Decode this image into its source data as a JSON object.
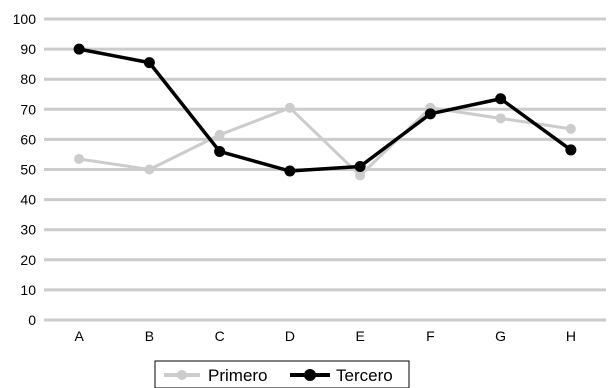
{
  "chart_data": {
    "type": "line",
    "title": "",
    "xlabel": "",
    "ylabel": "",
    "categories": [
      "A",
      "B",
      "C",
      "D",
      "E",
      "F",
      "G",
      "H"
    ],
    "y_ticks": [
      "0",
      "10",
      "20",
      "30",
      "40",
      "50",
      "60",
      "70",
      "80",
      "90",
      "100"
    ],
    "ylim": [
      0,
      100
    ],
    "grid": true,
    "legend_position": "bottom",
    "series": [
      {
        "name": "Primero",
        "color": "#cccccc",
        "values": [
          53.5,
          50,
          61.5,
          70.5,
          48,
          70.5,
          67,
          63.5
        ]
      },
      {
        "name": "Tercero",
        "color": "#000000",
        "values": [
          90,
          85.5,
          56,
          49.5,
          51,
          68.5,
          73.5,
          56.5
        ]
      }
    ],
    "gridline_color": "#cccccc"
  }
}
